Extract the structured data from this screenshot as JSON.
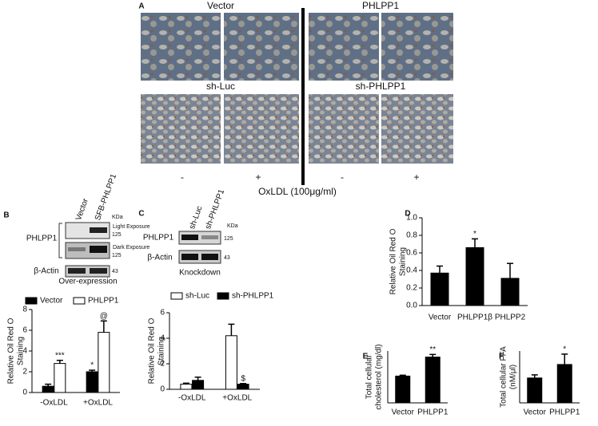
{
  "panel_a": {
    "label": "A",
    "titles": [
      "Vector",
      "PHLPP1",
      "sh-Luc",
      "sh-PHLPP1"
    ],
    "signs": [
      "-",
      "+",
      "-",
      "+"
    ],
    "treatment": "OxLDL (100μg/ml)"
  },
  "panel_b": {
    "label": "B",
    "lanes": [
      "Vector",
      "SFB-PHLPP1"
    ],
    "unit": "KDa",
    "bands": [
      "Light Exposure",
      "125",
      "Dark Exposure",
      "125",
      "43"
    ],
    "proteins": [
      "PHLPP1",
      "β-Actin"
    ],
    "caption": "Over-expression"
  },
  "panel_c": {
    "label": "C",
    "lanes": [
      "sh-Luc",
      "sh-PHLPP1"
    ],
    "unit": "KDa",
    "bands": [
      "125",
      "43"
    ],
    "proteins": [
      "PHLPP1",
      "β-Actin"
    ],
    "caption": "Knockdown"
  },
  "chart_data": [
    {
      "type": "bar",
      "ylabel": [
        "Relative  Oil Red O",
        "Staining"
      ],
      "categories": [
        "-OxLDL",
        "+OxLDL"
      ],
      "legend": true,
      "series": [
        {
          "name": "Vector",
          "color": "#000000",
          "values": [
            0.6,
            2.0
          ],
          "errors": [
            0.2,
            0.15
          ],
          "labels": [
            null,
            "*"
          ]
        },
        {
          "name": "PHLPP1",
          "color": "#ffffff",
          "values": [
            2.8,
            5.8
          ],
          "errors": [
            0.3,
            1.1
          ],
          "labels": [
            "***",
            "@"
          ]
        }
      ],
      "ylim": [
        0,
        8
      ],
      "yticks": [
        0,
        2,
        4,
        6,
        8
      ]
    },
    {
      "type": "bar",
      "ylabel": [
        "Relative Oil Red O",
        "Staining"
      ],
      "categories": [
        "-OxLDL",
        "+OxLDL"
      ],
      "legend": true,
      "series": [
        {
          "name": "sh-Luc",
          "color": "#ffffff",
          "values": [
            0.4,
            4.2
          ],
          "errors": [
            0.08,
            0.9
          ],
          "labels": [
            null,
            null
          ]
        },
        {
          "name": "sh-PHLPP1",
          "color": "#000000",
          "values": [
            0.7,
            0.4
          ],
          "errors": [
            0.25,
            0.05
          ],
          "labels": [
            null,
            "$"
          ]
        }
      ],
      "ylim": [
        0,
        6
      ],
      "yticks": [
        0,
        2,
        4,
        6
      ]
    },
    {
      "type": "bar",
      "panel": "D",
      "ylabel": [
        "Relative  Oil Red O",
        "Staining"
      ],
      "categories": [
        "Vector",
        "PHLPP1β",
        "PHLPP2"
      ],
      "legend": false,
      "series": [
        {
          "color": "#000000",
          "values": [
            0.37,
            0.66,
            0.31
          ],
          "errors": [
            0.08,
            0.1,
            0.17
          ],
          "labels": [
            null,
            "*",
            null
          ]
        }
      ],
      "ylim": [
        0,
        1
      ],
      "yticks": [
        {
          "value": 0,
          "label": "0.0"
        },
        0.2,
        0.4,
        0.6,
        0.8,
        {
          "value": 1,
          "label": "1.0"
        }
      ]
    },
    {
      "type": "bar",
      "panel": "E",
      "ylabel": [
        "Total cellular",
        "cholesterol (mg/dl)"
      ],
      "categories": [
        "Vector",
        "PHLPP1"
      ],
      "legend": false,
      "series": [
        {
          "color": "#000000",
          "values": [
            31,
            53
          ],
          "errors": [
            1,
            3
          ],
          "labels": [
            null,
            "**"
          ]
        }
      ],
      "ylim": [
        0,
        60
      ]
    },
    {
      "type": "bar",
      "panel": "F",
      "ylabel": [
        "Total cellular FFA",
        "(nM/μl)"
      ],
      "categories": [
        "Vector",
        "PHLPP1"
      ],
      "legend": false,
      "series": [
        {
          "color": "#000000",
          "values": [
            1.2,
            1.85
          ],
          "errors": [
            0.15,
            0.5
          ],
          "labels": [
            null,
            "*"
          ]
        }
      ],
      "ylim": [
        0,
        2.5
      ]
    }
  ]
}
